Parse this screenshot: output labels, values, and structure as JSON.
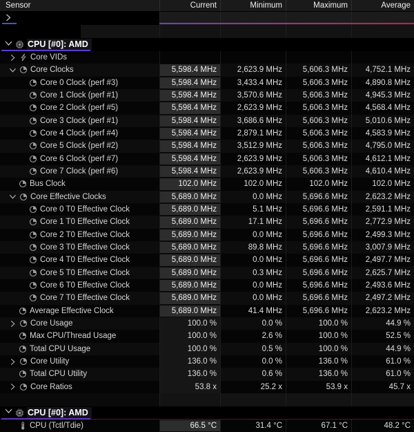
{
  "header": {
    "sensor_label": "Sensor",
    "columns": [
      "Current",
      "Minimum",
      "Maximum",
      "Average"
    ]
  },
  "summary_row": {
    "note": "collapsed-group-row-with-redacted-label",
    "chevron": "collapsed"
  },
  "group1": {
    "title": "CPU [#0]: AMD"
  },
  "group2": {
    "title": "CPU [#0]: AMD"
  },
  "colors": {
    "group_underline": "#5b3bd0",
    "gradient_bar_start": "#6f3fc8",
    "gradient_bar_end": "#d81348",
    "selection_blue": "#3f55d4",
    "current_cell_bg": "#2d2d2d",
    "header_bg": "#1a1a1a"
  },
  "rows": [
    {
      "label": "Core VIDs",
      "icon": "bolt",
      "chevron": "collapsed",
      "indent": "grp",
      "values": null,
      "hl": "none"
    },
    {
      "label": "Core Clocks",
      "icon": "clock",
      "chevron": "expanded",
      "indent": "grp",
      "values": [
        "5,598.4 MHz",
        "2,623.9 MHz",
        "5,606.3 MHz",
        "4,752.1 MHz"
      ],
      "hl": "strong"
    },
    {
      "label": "Core 0 Clock (perf #3)",
      "icon": "clock",
      "chevron": "none",
      "indent": "c",
      "values": [
        "5,598.4 MHz",
        "3,433.4 MHz",
        "5,606.3 MHz",
        "4,890.8 MHz"
      ],
      "hl": "strong"
    },
    {
      "label": "Core 1 Clock (perf #1)",
      "icon": "clock",
      "chevron": "none",
      "indent": "c",
      "values": [
        "5,598.4 MHz",
        "3,570.6 MHz",
        "5,606.3 MHz",
        "4,945.3 MHz"
      ],
      "hl": "strong"
    },
    {
      "label": "Core 2 Clock (perf #5)",
      "icon": "clock",
      "chevron": "none",
      "indent": "c",
      "values": [
        "5,598.4 MHz",
        "2,623.9 MHz",
        "5,606.3 MHz",
        "4,568.4 MHz"
      ],
      "hl": "strong"
    },
    {
      "label": "Core 3 Clock (perf #1)",
      "icon": "clock",
      "chevron": "none",
      "indent": "c",
      "values": [
        "5,598.4 MHz",
        "3,686.6 MHz",
        "5,606.3 MHz",
        "5,010.6 MHz"
      ],
      "hl": "strong"
    },
    {
      "label": "Core 4 Clock (perf #4)",
      "icon": "clock",
      "chevron": "none",
      "indent": "c",
      "values": [
        "5,598.4 MHz",
        "2,879.1 MHz",
        "5,606.3 MHz",
        "4,583.9 MHz"
      ],
      "hl": "strong"
    },
    {
      "label": "Core 5 Clock (perf #2)",
      "icon": "clock",
      "chevron": "none",
      "indent": "c",
      "values": [
        "5,598.4 MHz",
        "3,512.9 MHz",
        "5,606.3 MHz",
        "4,795.0 MHz"
      ],
      "hl": "strong"
    },
    {
      "label": "Core 6 Clock (perf #7)",
      "icon": "clock",
      "chevron": "none",
      "indent": "c",
      "values": [
        "5,598.4 MHz",
        "2,623.9 MHz",
        "5,606.3 MHz",
        "4,612.1 MHz"
      ],
      "hl": "strong"
    },
    {
      "label": "Core 7 Clock (perf #6)",
      "icon": "clock",
      "chevron": "none",
      "indent": "c",
      "values": [
        "5,598.4 MHz",
        "2,623.9 MHz",
        "5,606.3 MHz",
        "4,610.4 MHz"
      ],
      "hl": "strong"
    },
    {
      "label": "Bus Clock",
      "icon": "clock",
      "chevron": "none",
      "indent": "a",
      "values": [
        "102.0 MHz",
        "102.0 MHz",
        "102.0 MHz",
        "102.0 MHz"
      ],
      "hl": "strong"
    },
    {
      "label": "Core Effective Clocks",
      "icon": "clock",
      "chevron": "expanded",
      "indent": "grp",
      "values": [
        "5,689.0 MHz",
        "0.0 MHz",
        "5,696.6 MHz",
        "2,623.2 MHz"
      ],
      "hl": "strong"
    },
    {
      "label": "Core 0 T0 Effective Clock",
      "icon": "clock",
      "chevron": "none",
      "indent": "c",
      "values": [
        "5,689.0 MHz",
        "5.1 MHz",
        "5,696.6 MHz",
        "2,591.1 MHz"
      ],
      "hl": "strong"
    },
    {
      "label": "Core 1 T0 Effective Clock",
      "icon": "clock",
      "chevron": "none",
      "indent": "c",
      "values": [
        "5,689.0 MHz",
        "17.1 MHz",
        "5,696.6 MHz",
        "2,772.9 MHz"
      ],
      "hl": "strong"
    },
    {
      "label": "Core 2 T0 Effective Clock",
      "icon": "clock",
      "chevron": "none",
      "indent": "c",
      "values": [
        "5,689.0 MHz",
        "0.0 MHz",
        "5,696.6 MHz",
        "2,499.3 MHz"
      ],
      "hl": "strong"
    },
    {
      "label": "Core 3 T0 Effective Clock",
      "icon": "clock",
      "chevron": "none",
      "indent": "c",
      "values": [
        "5,689.0 MHz",
        "89.8 MHz",
        "5,696.6 MHz",
        "3,007.9 MHz"
      ],
      "hl": "strong"
    },
    {
      "label": "Core 4 T0 Effective Clock",
      "icon": "clock",
      "chevron": "none",
      "indent": "c",
      "values": [
        "5,689.0 MHz",
        "0.0 MHz",
        "5,696.6 MHz",
        "2,497.7 MHz"
      ],
      "hl": "strong"
    },
    {
      "label": "Core 5 T0 Effective Clock",
      "icon": "clock",
      "chevron": "none",
      "indent": "c",
      "values": [
        "5,689.0 MHz",
        "0.3 MHz",
        "5,696.6 MHz",
        "2,625.7 MHz"
      ],
      "hl": "strong"
    },
    {
      "label": "Core 6 T0 Effective Clock",
      "icon": "clock",
      "chevron": "none",
      "indent": "c",
      "values": [
        "5,689.0 MHz",
        "0.0 MHz",
        "5,696.6 MHz",
        "2,493.6 MHz"
      ],
      "hl": "strong"
    },
    {
      "label": "Core 7 T0 Effective Clock",
      "icon": "clock",
      "chevron": "none",
      "indent": "c",
      "values": [
        "5,689.0 MHz",
        "0.0 MHz",
        "5,696.6 MHz",
        "2,497.2 MHz"
      ],
      "hl": "strong"
    },
    {
      "label": "Average Effective Clock",
      "icon": "clock",
      "chevron": "none",
      "indent": "a",
      "values": [
        "5,689.0 MHz",
        "41.4 MHz",
        "5,696.6 MHz",
        "2,623.2 MHz"
      ],
      "hl": "strong"
    },
    {
      "label": "Core Usage",
      "icon": "clock",
      "chevron": "collapsed",
      "indent": "grp",
      "values": [
        "100.0 %",
        "0.0 %",
        "100.0 %",
        "44.9 %"
      ],
      "hl": "weak"
    },
    {
      "label": "Max CPU/Thread Usage",
      "icon": "clock",
      "chevron": "none",
      "indent": "a",
      "values": [
        "100.0 %",
        "2.6 %",
        "100.0 %",
        "52.5 %"
      ],
      "hl": "weak"
    },
    {
      "label": "Total CPU Usage",
      "icon": "clock",
      "chevron": "none",
      "indent": "a",
      "values": [
        "100.0 %",
        "0.5 %",
        "100.0 %",
        "44.9 %"
      ],
      "hl": "weak"
    },
    {
      "label": "Core Utility",
      "icon": "clock",
      "chevron": "collapsed",
      "indent": "grp",
      "values": [
        "136.0 %",
        "0.0 %",
        "136.0 %",
        "61.0 %"
      ],
      "hl": "weak"
    },
    {
      "label": "Total CPU Utility",
      "icon": "clock",
      "chevron": "none",
      "indent": "a",
      "values": [
        "136.0 %",
        "0.6 %",
        "136.0 %",
        "61.0 %"
      ],
      "hl": "weak"
    },
    {
      "label": "Core Ratios",
      "icon": "clock",
      "chevron": "collapsed",
      "indent": "grp",
      "values": [
        "53.8 x",
        "25.2 x",
        "53.9 x",
        "45.7 x"
      ],
      "hl": "weak"
    }
  ],
  "temp_row": {
    "label": "CPU (Tctl/Tdie)",
    "icon": "thermometer",
    "chevron": "none",
    "indent": "a",
    "values": [
      "66.5 °C",
      "31.4 °C",
      "67.1 °C",
      "48.2 °C"
    ],
    "hl": "strong"
  }
}
